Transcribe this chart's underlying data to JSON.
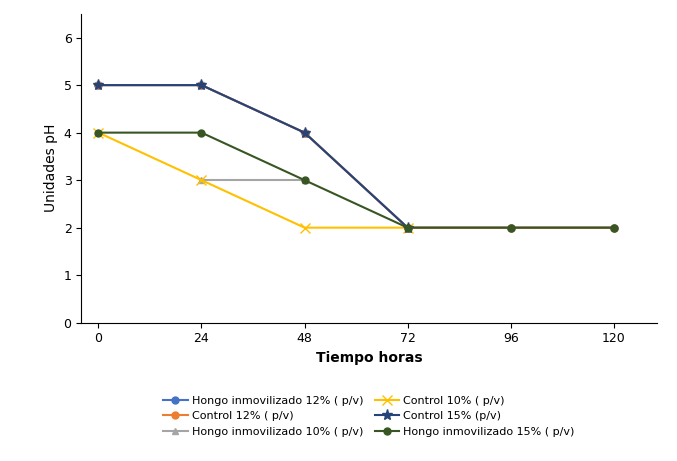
{
  "series": [
    {
      "label": "Hongo inmovilizado 12% ( p/v)",
      "x": [
        0,
        24,
        48,
        72,
        96,
        120
      ],
      "y": [
        5,
        5,
        4,
        2,
        2,
        2
      ],
      "color": "#4472C4",
      "marker": "o",
      "linewidth": 1.5,
      "markersize": 5
    },
    {
      "label": "Control 12% ( p/v)",
      "x": [
        0,
        24,
        48,
        72,
        96,
        120
      ],
      "y": [
        5,
        5,
        4,
        2,
        2,
        2
      ],
      "color": "#ED7D31",
      "marker": "o",
      "linewidth": 1.5,
      "markersize": 5
    },
    {
      "label": "Hongo inmovilizado 10% ( p/v)",
      "x": [
        24,
        48
      ],
      "y": [
        3,
        3
      ],
      "color": "#A5A5A5",
      "marker": "^",
      "linewidth": 1.5,
      "markersize": 5
    },
    {
      "label": "Control 10% ( p/v)",
      "x": [
        0,
        24,
        48,
        72
      ],
      "y": [
        4,
        3,
        2,
        2
      ],
      "color": "#FFC000",
      "marker": "x",
      "linewidth": 1.5,
      "markersize": 7
    },
    {
      "label": "Control 15% (p/v)",
      "x": [
        0,
        24,
        48,
        72
      ],
      "y": [
        5,
        5,
        4,
        2
      ],
      "color": "#264478",
      "marker": "*",
      "linewidth": 1.5,
      "markersize": 8
    },
    {
      "label": "Hongo inmovilizado 15% ( p/v)",
      "x": [
        0,
        24,
        48,
        72,
        96,
        120
      ],
      "y": [
        4,
        4,
        3,
        2,
        2,
        2
      ],
      "color": "#375623",
      "marker": "o",
      "linewidth": 1.5,
      "markersize": 5
    }
  ],
  "legend_order": [
    0,
    1,
    2,
    3,
    4,
    5
  ],
  "legend_ncol": 2,
  "legend_labels_col1": [
    "Hongo inmovilizado 12% ( p/v)",
    "Hongo inmovilizado 10% ( p/v)",
    "Control 15% (p/v)"
  ],
  "legend_labels_col2": [
    "Control 12% ( p/v)",
    "Control 10% ( p/v)",
    "Hongo inmovilizado 15% ( p/v)"
  ],
  "xlabel": "Tiempo horas",
  "ylabel": "Unidades pH",
  "xlim": [
    -4,
    130
  ],
  "ylim": [
    0,
    6.5
  ],
  "xticks": [
    0,
    24,
    48,
    72,
    96,
    120
  ],
  "yticks": [
    0,
    1,
    2,
    3,
    4,
    5,
    6
  ],
  "xlabel_fontsize": 10,
  "ylabel_fontsize": 10,
  "tick_fontsize": 9,
  "legend_fontsize": 8,
  "background_color": "#FFFFFF"
}
